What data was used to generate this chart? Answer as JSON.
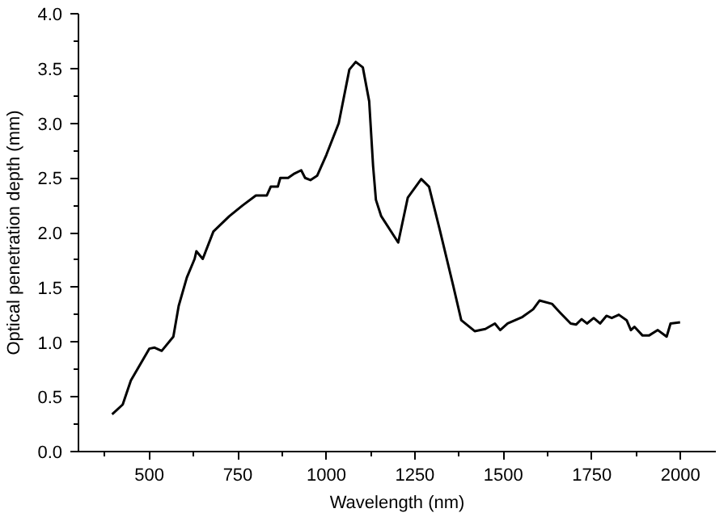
{
  "chart_data": {
    "type": "line",
    "xlabel": "Wavelength (nm)",
    "ylabel": "Optical penetration depth (mm)",
    "xlim": [
      300,
      2100
    ],
    "ylim": [
      0,
      4.0
    ],
    "xticks": [
      {
        "value": 375,
        "label": null
      },
      500,
      {
        "value": 625,
        "label": null
      },
      750,
      {
        "value": 875,
        "label": null
      },
      1000,
      {
        "value": 1125,
        "label": null
      },
      1250,
      {
        "value": 1375,
        "label": null
      },
      1500,
      {
        "value": 1625,
        "label": null
      },
      1750,
      {
        "value": 1875,
        "label": null
      },
      2000
    ],
    "yticks": [
      {
        "value": 0,
        "label": "0.0"
      },
      {
        "value": 0.25,
        "label": null
      },
      0.5,
      {
        "value": 0.75,
        "label": null
      },
      {
        "value": 1,
        "label": "1.0"
      },
      {
        "value": 1.25,
        "label": null
      },
      1.5,
      {
        "value": 1.75,
        "label": null
      },
      {
        "value": 2,
        "label": "2.0"
      },
      {
        "value": 2.25,
        "label": null
      },
      2.5,
      {
        "value": 2.75,
        "label": null
      },
      {
        "value": 3,
        "label": "3.0"
      },
      {
        "value": 3.25,
        "label": null
      },
      3.5,
      {
        "value": 3.75,
        "label": null
      },
      {
        "value": 4,
        "label": "4.0"
      }
    ],
    "grid": false,
    "series": [
      {
        "color": "#000000",
        "x": [
          395,
          425,
          448,
          500,
          515,
          535,
          568,
          583,
          606,
          628,
          633,
          651,
          681,
          726,
          764,
          801,
          832,
          843,
          863,
          870,
          892,
          910,
          929,
          940,
          955,
          974,
          1000,
          1035,
          1065,
          1083,
          1103,
          1121,
          1132,
          1140,
          1155,
          1203,
          1230,
          1268,
          1290,
          1320,
          1358,
          1381,
          1419,
          1449,
          1476,
          1491,
          1512,
          1554,
          1584,
          1602,
          1637,
          1660,
          1690,
          1705,
          1721,
          1736,
          1755,
          1773,
          1791,
          1806,
          1826,
          1848,
          1860,
          1870,
          1893,
          1911,
          1936,
          1961,
          1972,
          1999
        ],
        "values": [
          0.34,
          0.43,
          0.65,
          0.94,
          0.95,
          0.92,
          1.05,
          1.33,
          1.59,
          1.76,
          1.83,
          1.76,
          2.01,
          2.15,
          2.25,
          2.34,
          2.34,
          2.42,
          2.42,
          2.5,
          2.5,
          2.54,
          2.57,
          2.5,
          2.48,
          2.52,
          2.71,
          3.0,
          3.49,
          3.56,
          3.51,
          3.2,
          2.61,
          2.3,
          2.15,
          1.91,
          2.32,
          2.49,
          2.42,
          2.03,
          1.52,
          1.2,
          1.1,
          1.12,
          1.17,
          1.11,
          1.17,
          1.23,
          1.3,
          1.38,
          1.35,
          1.27,
          1.17,
          1.16,
          1.21,
          1.17,
          1.22,
          1.17,
          1.24,
          1.22,
          1.25,
          1.2,
          1.11,
          1.14,
          1.06,
          1.06,
          1.11,
          1.05,
          1.17,
          1.18
        ]
      }
    ]
  }
}
